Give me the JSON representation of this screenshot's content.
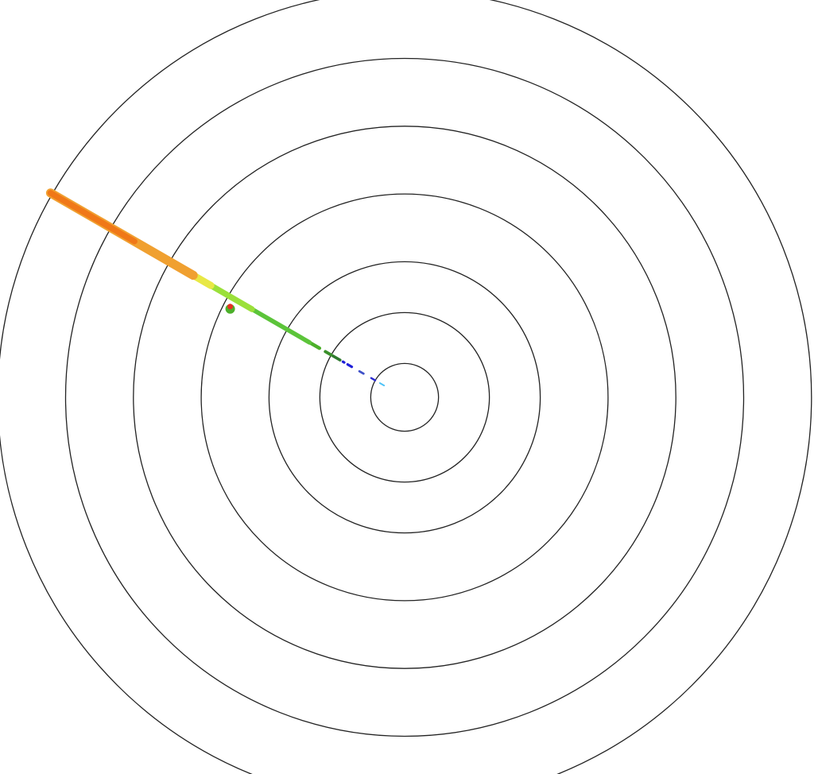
{
  "chart_data": {
    "type": "polar-scan",
    "title": "",
    "ring_ranges": [
      0.5,
      1.25,
      2,
      3,
      4,
      5,
      6
    ],
    "ring_color": "#222222",
    "grid": true,
    "beam": {
      "azimuth_deg": 300,
      "segments": [
        {
          "from": 0.35,
          "to": 0.45,
          "color": "#4fc3f7",
          "level": "very-low"
        },
        {
          "from": 0.5,
          "to": 0.6,
          "color": "#2a2ad0",
          "level": "low"
        },
        {
          "from": 0.7,
          "to": 0.78,
          "color": "#3f51c8",
          "level": "low"
        },
        {
          "from": 0.9,
          "to": 1.05,
          "color": "#1f1fd8",
          "level": "low"
        },
        {
          "from": 1.1,
          "to": 1.22,
          "color": "#2f7a2f",
          "level": "moderate-low"
        },
        {
          "from": 1.25,
          "to": 1.35,
          "color": "#3a8f2a",
          "level": "moderate-low"
        },
        {
          "from": 1.45,
          "to": 1.62,
          "color": "#4caf2a",
          "level": "moderate"
        },
        {
          "from": 1.62,
          "to": 2.6,
          "color": "#5cc43a",
          "level": "moderate"
        },
        {
          "from": 2.6,
          "to": 3.3,
          "color": "#9be03a",
          "level": "moderate-high"
        },
        {
          "from": 3.3,
          "to": 4.1,
          "color": "#e8e845",
          "level": "high"
        },
        {
          "from": 3.6,
          "to": 6.03,
          "color": "#f0a030",
          "level": "high"
        },
        {
          "from": 4.6,
          "to": 6.03,
          "color": "#f07818",
          "level": "very-high"
        }
      ],
      "cells": [
        {
          "range": 2.9,
          "offset_deg": -2.5,
          "color": "#e53020"
        }
      ]
    }
  }
}
